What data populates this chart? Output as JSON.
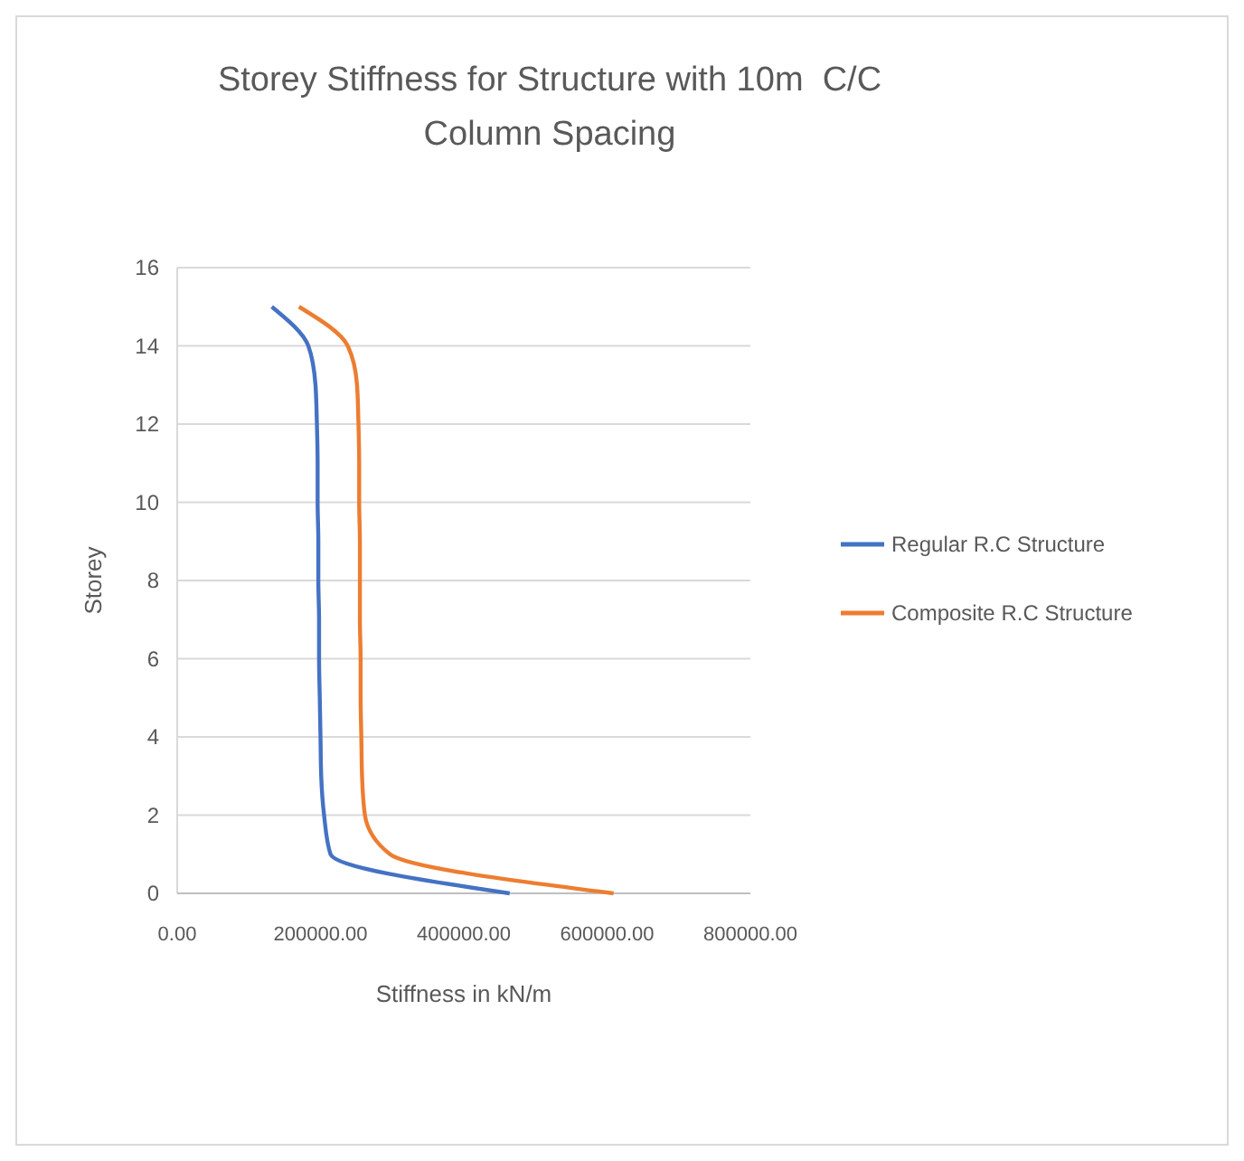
{
  "chart_data": {
    "type": "line",
    "title": "Storey Stiffness for Structure with 10m  C/C Column Spacing",
    "xlabel": "Stiffness in kN/m",
    "ylabel": "Storey",
    "series": [
      {
        "name": "Regular R.C  Structure",
        "color": "#4472c4",
        "x": [
          464000,
          214000,
          205000,
          201000,
          200000,
          199000,
          198000,
          198000,
          197000,
          197000,
          196000,
          196000,
          195000,
          193000,
          183000,
          132000
        ],
        "values": [
          0,
          1,
          2,
          3,
          4,
          5,
          6,
          7,
          8,
          9,
          10,
          11,
          12,
          13,
          14,
          15
        ]
      },
      {
        "name": "Composite R.C  Structure",
        "color": "#ed7d31",
        "x": [
          609000,
          297000,
          262000,
          258000,
          257000,
          256000,
          256000,
          255000,
          255000,
          255000,
          254000,
          254000,
          253000,
          251000,
          238000,
          170000
        ],
        "values": [
          0,
          1,
          2,
          3,
          4,
          5,
          6,
          7,
          8,
          9,
          10,
          11,
          12,
          13,
          14,
          15
        ]
      }
    ],
    "xlim": [
      0,
      800000
    ],
    "xticks": [
      {
        "value": 0,
        "label": "0.00"
      },
      {
        "value": 200000,
        "label": "200000.00"
      },
      {
        "value": 400000,
        "label": "400000.00"
      },
      {
        "value": 600000,
        "label": "600000.00"
      },
      {
        "value": 800000,
        "label": "800000.00"
      }
    ],
    "ylim": [
      0,
      16
    ],
    "yticks": [
      0,
      2,
      4,
      6,
      8,
      10,
      12,
      14,
      16
    ],
    "grid": "y",
    "legend": "right",
    "marker": "none",
    "line_style": "solid"
  }
}
